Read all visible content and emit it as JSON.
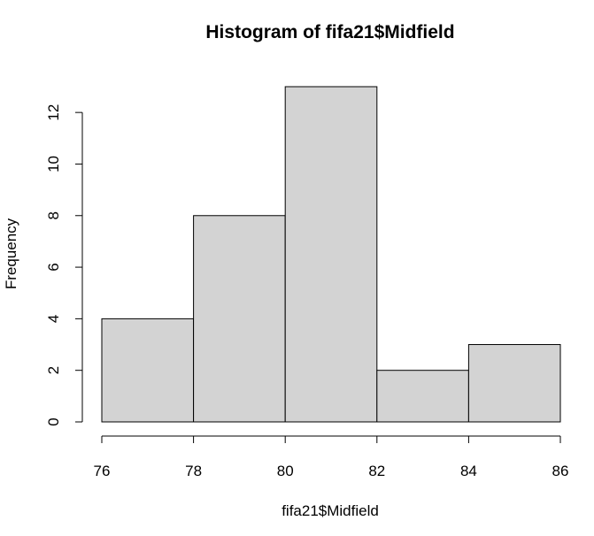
{
  "chart_data": {
    "type": "bar",
    "title": "Histogram of fifa21$Midfield",
    "xlabel": "fifa21$Midfield",
    "ylabel": "Frequency",
    "bins": [
      {
        "start": 76,
        "end": 78,
        "count": 4
      },
      {
        "start": 78,
        "end": 80,
        "count": 8
      },
      {
        "start": 80,
        "end": 82,
        "count": 13
      },
      {
        "start": 82,
        "end": 84,
        "count": 2
      },
      {
        "start": 84,
        "end": 86,
        "count": 3
      }
    ],
    "xlim": [
      76,
      86
    ],
    "ylim": [
      0,
      13
    ],
    "xticks": [
      "76",
      "78",
      "80",
      "82",
      "84",
      "86"
    ],
    "yticks": [
      "0",
      "2",
      "4",
      "6",
      "8",
      "10",
      "12"
    ],
    "bar_fill": "#d3d3d3",
    "bar_stroke": "#000000",
    "grid": false,
    "legend": "none"
  }
}
